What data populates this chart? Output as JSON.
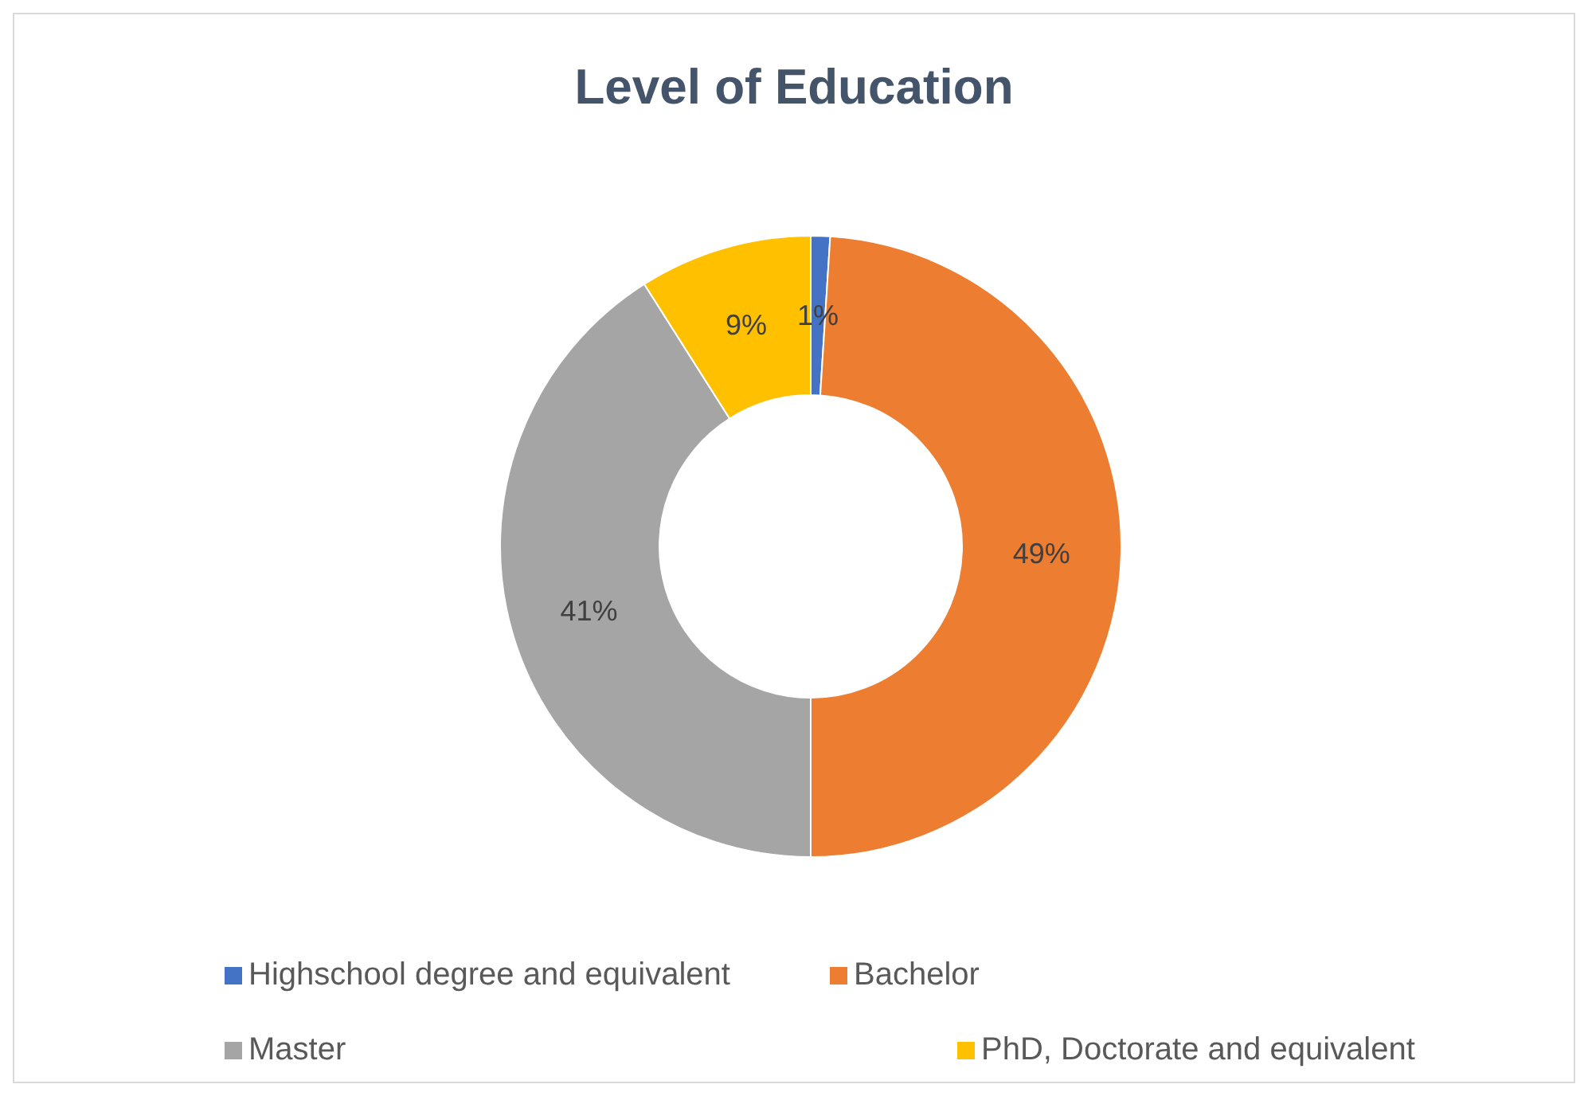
{
  "chart_data": {
    "type": "donut",
    "title": "Level of Education",
    "categories": [
      "Highschool degree and equivalent",
      "Bachelor",
      "Master",
      "PhD, Doctorate and equivalent"
    ],
    "values": [
      1,
      49,
      41,
      9
    ],
    "colors": [
      "#4472c4",
      "#ed7d31",
      "#a5a5a5",
      "#ffc000"
    ],
    "value_labels": [
      "1%",
      "49%",
      "41%",
      "9%"
    ],
    "legend": "bottom"
  }
}
